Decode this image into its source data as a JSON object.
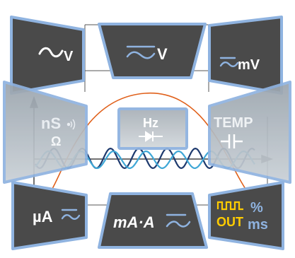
{
  "panels": {
    "ac_v": {
      "label": "V"
    },
    "dc_v": {
      "label": "V"
    },
    "mv": {
      "label": "mV"
    },
    "ns_ohm": {
      "label": "nS",
      "sub": "Ω"
    },
    "hz_diode": {
      "label": "Hz"
    },
    "temp_cap": {
      "label": "TEMP"
    },
    "ua": {
      "label": "µA"
    },
    "ma_a": {
      "label": "mA·A"
    },
    "pulse": {
      "out": "OUT",
      "pct": "%",
      "ms": "ms"
    }
  },
  "colors": {
    "panel_fill": "#4a4a4a",
    "panel_border": "#8fb3e0",
    "text_white": "#ffffff",
    "text_faint": "#d8d8d8",
    "accent_yellow": "#ffcc00",
    "accent_blue": "#8fb3e0",
    "wave_dark": "#1e3a6e",
    "wave_light": "#3fa7d6",
    "wave_orange": "#e0601a"
  },
  "icons": [
    "sine-ac-icon",
    "dc-ac-icon",
    "sound-icon",
    "diode-icon",
    "capacitor-icon",
    "square-pulse-icon"
  ]
}
